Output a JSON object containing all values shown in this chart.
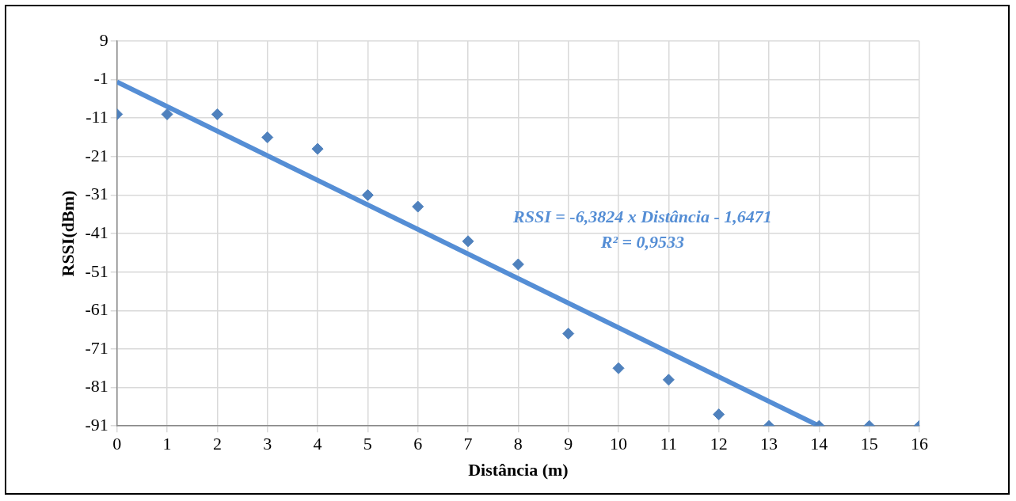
{
  "chart_data": {
    "type": "scatter",
    "xlabel": "Distância (m)",
    "ylabel": "RSSI(dBm)",
    "x": [
      0,
      1,
      2,
      3,
      4,
      5,
      6,
      7,
      8,
      9,
      10,
      11,
      12,
      13,
      14,
      15,
      16
    ],
    "series": [
      {
        "marker": "diamond",
        "color": "#4f81bd",
        "values": [
          -10,
          -10,
          -10,
          -16,
          -19,
          -31,
          -34,
          -43,
          -49,
          -67,
          -76,
          -79,
          -88,
          -91,
          -91,
          -91,
          -91
        ]
      },
      {
        "type": "line",
        "marker": "none",
        "color": "#558ed5",
        "x": [
          0,
          14
        ],
        "values": [
          -1.6,
          -91
        ]
      }
    ],
    "xlim": [
      0,
      16
    ],
    "xticks": [
      0,
      1,
      2,
      3,
      4,
      5,
      6,
      7,
      8,
      9,
      10,
      11,
      12,
      13,
      14,
      15,
      16
    ],
    "ylim": [
      -91,
      9
    ],
    "yticks": [
      9,
      -1,
      -11,
      -21,
      -31,
      -41,
      -51,
      -61,
      -71,
      -81,
      -91
    ],
    "annotations": [
      "RSSI = -6,3824 x Distância - 1,6471",
      "R² = 0,9533"
    ],
    "grid": true,
    "legend": false
  }
}
